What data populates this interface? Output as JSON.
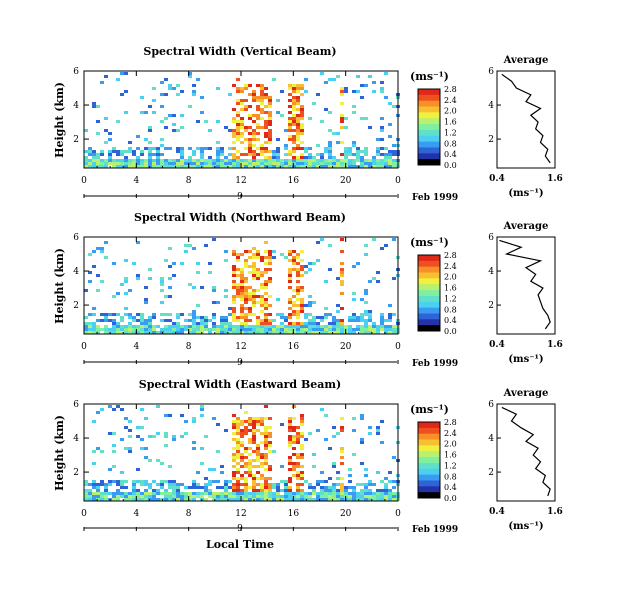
{
  "figure": {
    "footer_xlabel": "Local Time",
    "date_label": "Feb 1999",
    "colorbar": {
      "unit": "(ms⁻¹)",
      "tick_values": [
        0.0,
        0.4,
        0.8,
        1.2,
        1.6,
        2.0,
        2.4,
        2.8
      ],
      "colors": [
        "#000000",
        "#2233aa",
        "#2f64d8",
        "#3a9cf0",
        "#4ad0f0",
        "#60e0c8",
        "#80f0a0",
        "#b8f070",
        "#f0f040",
        "#f8c030",
        "#f89028",
        "#f05020",
        "#e02818"
      ]
    },
    "average_panel": {
      "title": "Average",
      "xlabel": "(ms⁻¹)",
      "x_ticks": [
        "0.4",
        "1.6"
      ],
      "y_ticks": [
        "2",
        "4",
        "6"
      ]
    }
  },
  "chart_data": [
    {
      "type": "heatmap",
      "title": "Spectral Width (Vertical Beam)",
      "ylabel": "Height (km)",
      "x_tick_labels": [
        "0",
        "4",
        "8",
        "12",
        "16",
        "20",
        "0"
      ],
      "y_tick_labels": [
        "2",
        "4",
        "6"
      ],
      "day_label": "9",
      "xlim": [
        0,
        24
      ],
      "ylim": [
        0.3,
        6.0
      ],
      "colorbar_label": "(ms⁻¹)",
      "average_profile": {
        "title": "Average",
        "height_km": [
          0.6,
          1.0,
          1.4,
          1.8,
          2.2,
          2.6,
          3.0,
          3.4,
          3.8,
          4.2,
          4.6,
          5.0,
          5.4,
          5.8
        ],
        "width_ms": [
          1.5,
          1.4,
          1.45,
          1.3,
          1.35,
          1.2,
          1.25,
          1.1,
          1.3,
          1.0,
          1.1,
          0.8,
          0.7,
          0.5
        ]
      }
    },
    {
      "type": "heatmap",
      "title": "Spectral Width (Northward Beam)",
      "ylabel": "Height (km)",
      "x_tick_labels": [
        "0",
        "4",
        "8",
        "12",
        "16",
        "20",
        "0"
      ],
      "y_tick_labels": [
        "2",
        "4",
        "6"
      ],
      "day_label": "9",
      "xlim": [
        0,
        24
      ],
      "ylim": [
        0.3,
        6.0
      ],
      "colorbar_label": "(ms⁻¹)",
      "average_profile": {
        "title": "Average",
        "height_km": [
          0.6,
          1.0,
          1.4,
          1.8,
          2.2,
          2.6,
          3.0,
          3.4,
          3.8,
          4.2,
          4.6,
          5.0,
          5.4,
          5.8
        ],
        "width_ms": [
          1.4,
          1.5,
          1.45,
          1.35,
          1.3,
          1.25,
          1.35,
          1.1,
          1.2,
          1.0,
          1.3,
          0.6,
          0.9,
          0.45
        ]
      }
    },
    {
      "type": "heatmap",
      "title": "Spectral Width (Eastward Beam)",
      "ylabel": "Height (km)",
      "x_tick_labels": [
        "0",
        "4",
        "8",
        "12",
        "16",
        "20",
        "0"
      ],
      "y_tick_labels": [
        "2",
        "4",
        "6"
      ],
      "day_label": "9",
      "xlim": [
        0,
        24
      ],
      "ylim": [
        0.3,
        6.0
      ],
      "colorbar_label": "(ms⁻¹)",
      "average_profile": {
        "title": "Average",
        "height_km": [
          0.6,
          1.0,
          1.4,
          1.8,
          2.2,
          2.6,
          3.0,
          3.4,
          3.8,
          4.2,
          4.6,
          5.0,
          5.4,
          5.8
        ],
        "width_ms": [
          1.45,
          1.5,
          1.35,
          1.4,
          1.2,
          1.3,
          1.15,
          1.25,
          1.0,
          1.15,
          0.9,
          0.7,
          0.8,
          0.5
        ]
      }
    }
  ]
}
